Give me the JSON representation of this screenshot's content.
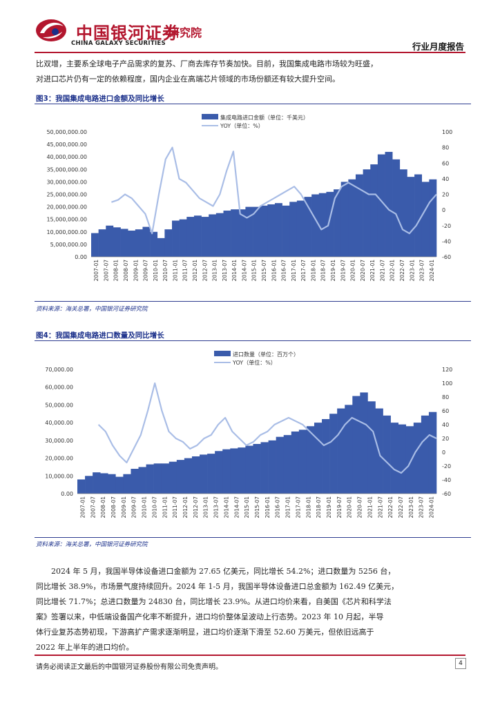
{
  "header": {
    "company": "中国银河证券",
    "company_en": "CHINA GALAXY SECURITIES",
    "institute": "研究院",
    "report_type": "行业月度报告"
  },
  "intro_lines": [
    "比双增，主要系全球电子产品需求的复苏、厂商去库存节奏加快。目前，我国集成电路市场较为旺盛，",
    "对进口芯片仍有一定的依赖程度，国内企业在高端芯片领域的市场份额还有较大提升空间。"
  ],
  "figure3": {
    "title": "图3：我国集成电路进口金额及同比增长",
    "source": "资料来源：海关总署，中国银河证券研究院"
  },
  "figure4": {
    "title": "图4：我国集成电路进口数量及同比增长",
    "source": "资料来源：海关总署，中国银河证券研究院"
  },
  "body_lines": [
    "2024 年 5 月，我国半导体设备进口金额为 27.65 亿美元，同比增长 54.2%；进口数量为 5256 台，",
    "同比增长 38.9%，市场景气度持续回升。2024 年 1-5 月，我国半导体设备进口总金额为 162.49 亿美元，",
    "同比增长 71.7%；总进口数量为 24830 台，同比增长 23.9%。从进口均价来看，自美国《芯片和科学法",
    "案》签署以来，中低端设备国产化率不断提升，进口均价整体呈波动上行态势。2023 年 10 月起，半导",
    "体行业复苏态势初现，下游高扩产需求逐渐明显，进口均价逐渐下滑至 52.60 万美元，但依旧远高于",
    "2022 年上半年的进口均价。"
  ],
  "footer": {
    "disclaimer": "请务必阅读正文最后的中国银河证券股份有限公司免责声明。",
    "page": "4"
  },
  "colors": {
    "bar": "#3a5bab",
    "line": "#a9bde6",
    "brand": "#b3162e",
    "heading": "#1a2f8a"
  },
  "chart_data": [
    {
      "type": "bar",
      "legend": [
        "集成电路进口金额（单位：千美元）",
        "YOY（单位：%）"
      ],
      "y_left": {
        "min": 0,
        "max": 50000000,
        "ticks": [
          "0.00",
          "5,000,000.00",
          "10,000,000.00",
          "15,000,000.00",
          "20,000,000.00",
          "25,000,000.00",
          "30,000,000.00",
          "35,000,000.00",
          "40,000,000.00",
          "45,000,000.00",
          "50,000,000.00"
        ]
      },
      "y_right": {
        "min": -60,
        "max": 100,
        "ticks": [
          "-60",
          "-40",
          "-20",
          "0",
          "20",
          "40",
          "60",
          "80",
          "100"
        ]
      },
      "x_labels": [
        "2007-01",
        "2007-07",
        "2008-01",
        "2008-07",
        "2009-01",
        "2009-07",
        "2010-01",
        "2010-07",
        "2011-01",
        "2011-07",
        "2012-01",
        "2012-07",
        "2013-01",
        "2013-07",
        "2014-01",
        "2014-07",
        "2015-01",
        "2015-07",
        "2016-01",
        "2016-07",
        "2017-01",
        "2017-07",
        "2018-01",
        "2018-07",
        "2019-01",
        "2019-07",
        "2020-01",
        "2020-07",
        "2021-01",
        "2021-07",
        "2022-01",
        "2022-07",
        "2023-01",
        "2023-07",
        "2024-01"
      ],
      "x_start": "2007-01",
      "x_end": "2024-05",
      "bar_values_approx": [
        9500000,
        11000000,
        12500000,
        11800000,
        11200000,
        10500000,
        11000000,
        12000000,
        10000000,
        7500000,
        11000000,
        14500000,
        15000000,
        16000000,
        16500000,
        16000000,
        17000000,
        17500000,
        18500000,
        19000000,
        19000000,
        20000000,
        20000000,
        20500000,
        21000000,
        21500000,
        20500000,
        22000000,
        22500000,
        24000000,
        25000000,
        25500000,
        26000000,
        27000000,
        30000000,
        31000000,
        33000000,
        35000000,
        37000000,
        41000000,
        42000000,
        39000000,
        35000000,
        32000000,
        33000000,
        30000000,
        31000000
      ],
      "yoy_values_approx": [
        null,
        null,
        null,
        10,
        13,
        20,
        15,
        5,
        -5,
        -30,
        20,
        65,
        80,
        40,
        35,
        25,
        15,
        10,
        5,
        20,
        50,
        75,
        -5,
        -10,
        -5,
        5,
        10,
        15,
        20,
        25,
        30,
        20,
        5,
        -10,
        -25,
        -20,
        15,
        30,
        35,
        30,
        25,
        20,
        20,
        10,
        0,
        -5,
        -25,
        -30,
        -20,
        -5,
        10,
        20
      ]
    },
    {
      "type": "bar",
      "legend": [
        "进口数量（单位：百万个）",
        "YOY（单位：%）"
      ],
      "y_left": {
        "min": 0,
        "max": 70000,
        "ticks": [
          "0.00",
          "10,000.00",
          "20,000.00",
          "30,000.00",
          "40,000.00",
          "50,000.00",
          "60,000.00",
          "70,000.00"
        ]
      },
      "y_right": {
        "min": -60,
        "max": 120,
        "ticks": [
          "-60",
          "-40",
          "-20",
          "0",
          "20",
          "40",
          "60",
          "80",
          "100",
          "120"
        ]
      },
      "x_labels": [
        "2007-01",
        "2007-07",
        "2008-01",
        "2008-07",
        "2009-01",
        "2009-07",
        "2010-01",
        "2010-07",
        "2011-01",
        "2011-07",
        "2012-01",
        "2012-07",
        "2013-01",
        "2013-07",
        "2014-01",
        "2014-07",
        "2015-01",
        "2015-07",
        "2016-01",
        "2016-07",
        "2017-01",
        "2017-07",
        "2018-01",
        "2018-07",
        "2019-01",
        "2019-07",
        "2020-01",
        "2020-07",
        "2021-01",
        "2021-07",
        "2022-01",
        "2022-07",
        "2023-01",
        "2023-07",
        "2024-01"
      ],
      "x_start": "2007-01",
      "x_end": "2024-05",
      "bar_values_approx": [
        8000,
        10000,
        12000,
        11500,
        11000,
        9500,
        11000,
        14000,
        15000,
        16500,
        17000,
        17000,
        18000,
        19000,
        20000,
        21000,
        22000,
        22500,
        24000,
        25000,
        25500,
        26000,
        27000,
        28000,
        29000,
        30000,
        32000,
        33000,
        35000,
        36000,
        38000,
        40000,
        42000,
        45000,
        48000,
        50000,
        55000,
        57000,
        52000,
        48000,
        44000,
        40000,
        39000,
        38000,
        40000,
        44000,
        46000
      ],
      "yoy_values_approx": [
        null,
        null,
        null,
        40,
        30,
        10,
        -5,
        -15,
        5,
        25,
        60,
        100,
        60,
        30,
        20,
        15,
        5,
        10,
        20,
        25,
        40,
        50,
        30,
        20,
        10,
        15,
        25,
        30,
        40,
        45,
        50,
        45,
        40,
        30,
        20,
        10,
        15,
        25,
        40,
        50,
        45,
        40,
        30,
        -5,
        -15,
        -25,
        -30,
        -20,
        0,
        15,
        25,
        20
      ]
    }
  ]
}
